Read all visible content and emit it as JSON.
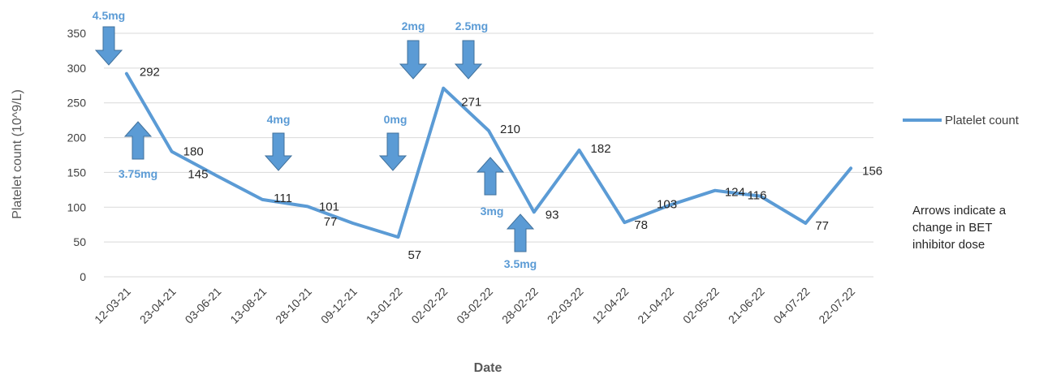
{
  "chart_data": {
    "type": "line",
    "xlabel": "Date",
    "ylabel": "Platelet count (10^9/L)",
    "ylim": [
      0,
      350
    ],
    "yticks": [
      0,
      50,
      100,
      150,
      200,
      250,
      300,
      350
    ],
    "grid": "horizontal",
    "legend_position": "right",
    "categories": [
      "12-03-21",
      "23-04-21",
      "03-06-21",
      "13-08-21",
      "28-10-21",
      "09-12-21",
      "13-01-22",
      "02-02-22",
      "03-02-22",
      "28-02-22",
      "22-03-22",
      "12-04-22",
      "21-04-22",
      "02-05-22",
      "21-06-22",
      "04-07-22",
      "22-07-22"
    ],
    "series": [
      {
        "name": "Platelet count",
        "color": "#5b9bd5",
        "values": [
          292,
          180,
          145,
          111,
          101,
          77,
          57,
          271,
          210,
          93,
          182,
          78,
          103,
          124,
          116,
          77,
          156
        ]
      }
    ],
    "data_labels": [
      "292",
      "180",
      "145",
      "111",
      "101",
      "77",
      "57",
      "271",
      "210",
      "93",
      "182",
      "78",
      "103",
      "124",
      "116",
      "77",
      "156"
    ],
    "annotations": [
      {
        "label": "4.5mg",
        "direction": "down",
        "at_index": 0
      },
      {
        "label": "3.75mg",
        "direction": "up",
        "at_index": 0.5
      },
      {
        "label": "4mg",
        "direction": "down",
        "at_index": 3.5
      },
      {
        "label": "0mg",
        "direction": "down",
        "at_index": 6
      },
      {
        "label": "2mg",
        "direction": "down",
        "at_index": 6.5
      },
      {
        "label": "2.5mg",
        "direction": "down",
        "at_index": 7.5
      },
      {
        "label": "3mg",
        "direction": "up",
        "at_index": 8
      },
      {
        "label": "3.5mg",
        "direction": "up",
        "at_index": 8.5
      }
    ],
    "note": "Arrows indicate a change in BET inhibitor dose"
  },
  "colors": {
    "series": "#5b9bd5",
    "arrow": "#5b9bd5",
    "arrow_outline": "#41719c",
    "grid": "#d9d9d9"
  }
}
